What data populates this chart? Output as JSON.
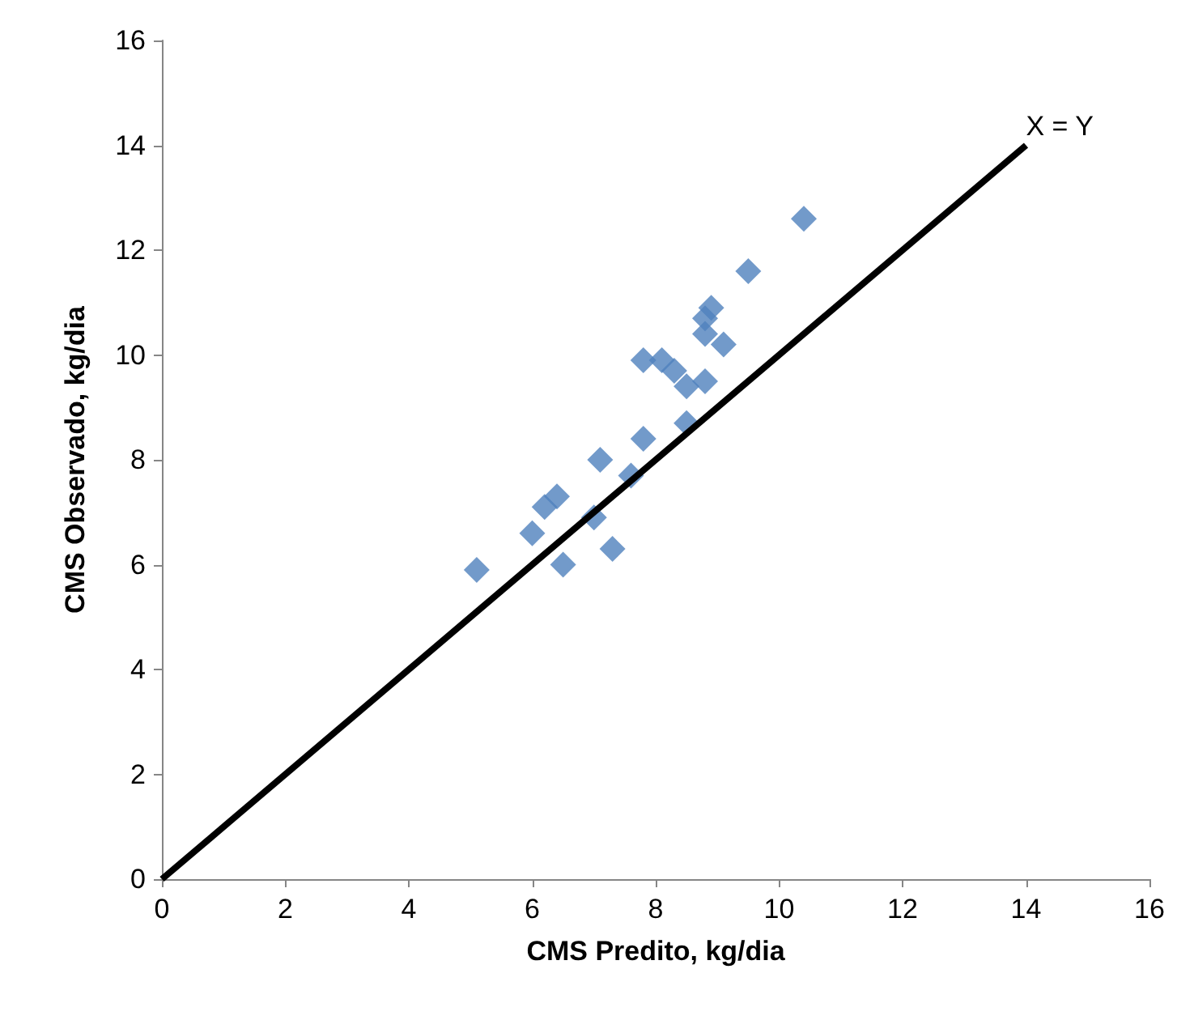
{
  "chart_data": {
    "type": "scatter",
    "xlabel": "CMS Predito, kg/dia",
    "ylabel": "CMS Observado, kg/dia",
    "xlim": [
      0,
      16
    ],
    "xticks": [
      0,
      2,
      4,
      6,
      8,
      10,
      12,
      14,
      16
    ],
    "ylim": [
      0,
      16
    ],
    "yticks": [
      0,
      2,
      4,
      6,
      8,
      10,
      12,
      14,
      16
    ],
    "grid": false,
    "legend": false,
    "marker": "diamond",
    "series": [
      {
        "color": "#4f81bd",
        "x": [
          5.1,
          6.0,
          6.2,
          6.4,
          6.5,
          7.0,
          7.1,
          7.3,
          7.6,
          7.8,
          7.8,
          8.1,
          8.3,
          8.5,
          8.8,
          8.5,
          8.8,
          8.9,
          8.8,
          9.1,
          9.5,
          10.4
        ],
        "values": [
          5.9,
          6.6,
          7.1,
          7.3,
          6.0,
          6.9,
          8.0,
          6.3,
          7.7,
          8.4,
          9.9,
          9.9,
          9.7,
          9.4,
          9.5,
          8.7,
          10.7,
          10.9,
          10.4,
          10.2,
          11.6,
          12.6
        ]
      },
      {
        "type": "line",
        "name": "X = Y",
        "color": "#000000",
        "x": [
          0,
          14
        ],
        "values": [
          0,
          14
        ],
        "marker": "none",
        "line_style": "solid"
      }
    ]
  }
}
